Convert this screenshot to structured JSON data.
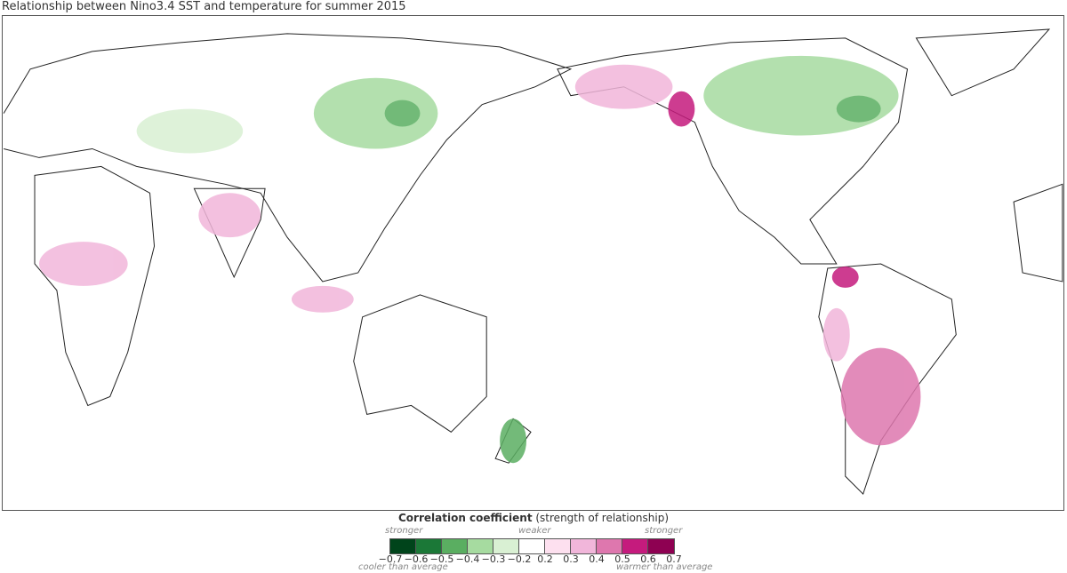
{
  "title": "Relationship between Nino3.4 SST and temperature for summer 2015",
  "legend": {
    "title_bold": "Correlation coefficient",
    "title_rest": " (strength of relationship)",
    "left_top": "stronger",
    "center_top": "weaker",
    "right_top": "stronger",
    "left_bottom": "cooler than average",
    "right_bottom": "warmer than average",
    "colors": [
      "#00441b",
      "#1b7837",
      "#5aae61",
      "#a6dba0",
      "#d9f0d3",
      "#ffffff",
      "#fde0ef",
      "#f1b6da",
      "#de77ae",
      "#c51b7d",
      "#8e0152"
    ],
    "ticks": [
      "−0.7",
      "−0.6",
      "−0.5",
      "−0.4",
      "−0.3",
      "−0.2",
      "0.2",
      "0.3",
      "0.4",
      "0.5",
      "0.6",
      "0.7"
    ]
  }
}
